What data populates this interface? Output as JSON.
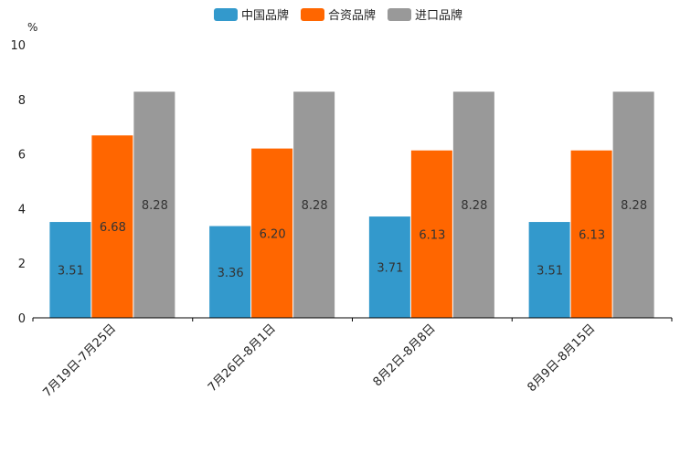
{
  "chart_data": {
    "type": "bar",
    "title": "",
    "xlabel": "",
    "ylabel": "%",
    "ylim": [
      0,
      10
    ],
    "yticks": [
      0,
      2,
      4,
      6,
      8,
      10
    ],
    "categories": [
      "7月19日-7月25日",
      "7月26日-8月1日",
      "8月2日-8月8日",
      "8月9日-8月15日"
    ],
    "series": [
      {
        "name": "中国品牌",
        "color": "#3399cc",
        "values": [
          3.51,
          3.36,
          3.71,
          3.51
        ],
        "labels": [
          "3.51",
          "3.36",
          "3.71",
          "3.51"
        ]
      },
      {
        "name": "合资品牌",
        "color": "#ff6600",
        "values": [
          6.68,
          6.2,
          6.13,
          6.13
        ],
        "labels": [
          "6.68",
          "6.20",
          "6.13",
          "6.13"
        ]
      },
      {
        "name": "进口品牌",
        "color": "#999999",
        "values": [
          8.28,
          8.28,
          8.28,
          8.28
        ],
        "labels": [
          "8.28",
          "8.28",
          "8.28",
          "8.28"
        ]
      }
    ],
    "legend_position": "top-center"
  }
}
